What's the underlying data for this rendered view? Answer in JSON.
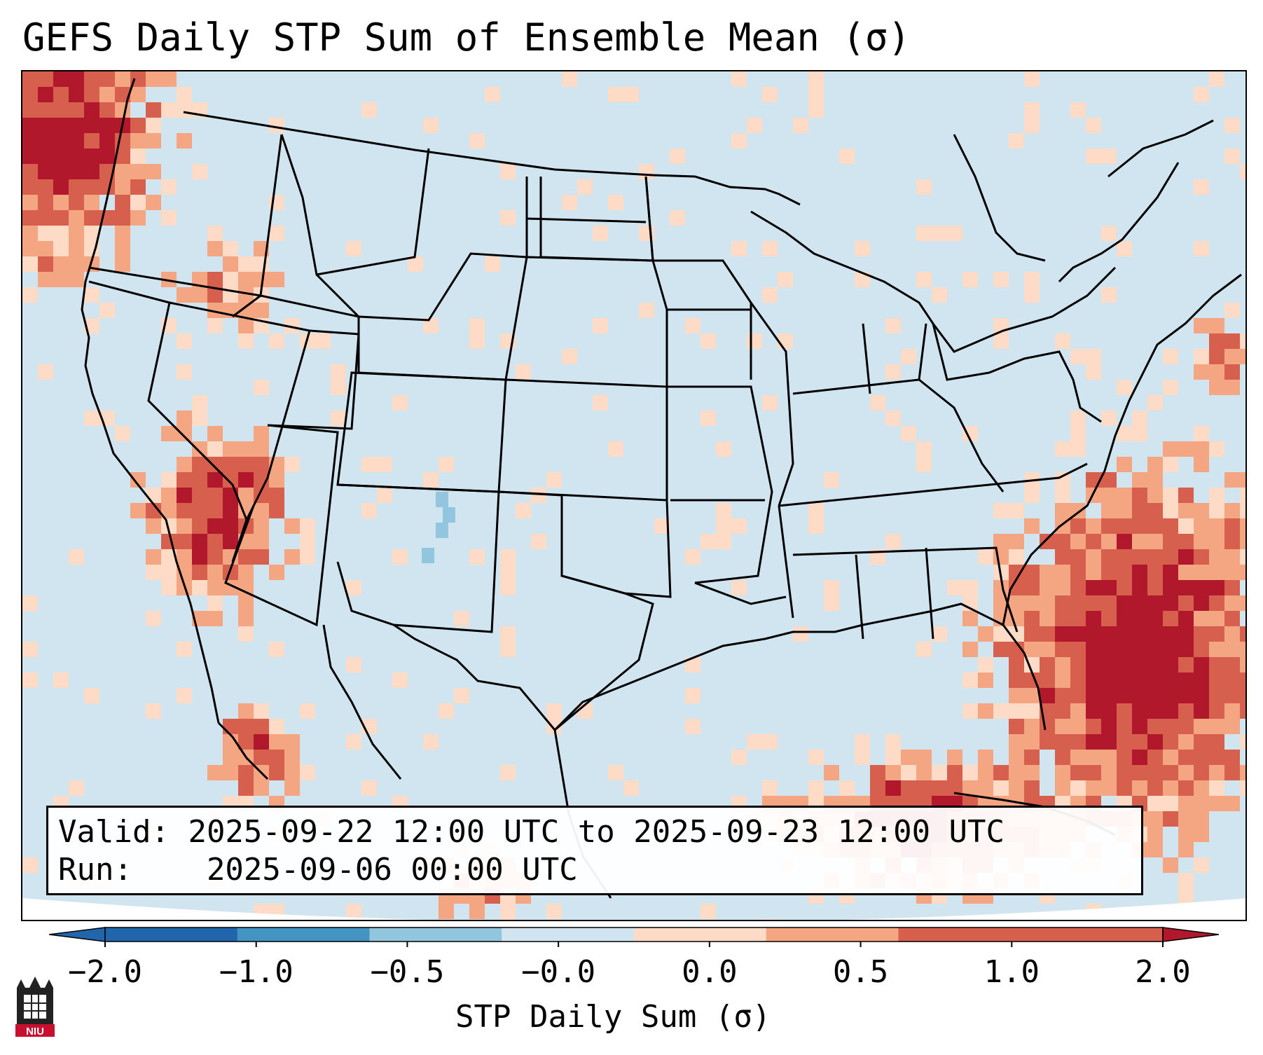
{
  "title": "GEFS Daily STP Sum of Ensemble Mean (σ)",
  "info": {
    "valid_label": "Valid:",
    "valid_value": "2025-09-22 12:00 UTC to 2025-09-23 12:00 UTC",
    "run_label": "Run:",
    "run_value": "2025-09-06 00:00 UTC"
  },
  "colorbar": {
    "label": "STP Daily Sum (σ)",
    "ticks": [
      "−2.0",
      "−1.0",
      "−0.5",
      "−0.0",
      "0.0",
      "0.5",
      "1.0",
      "2.0"
    ],
    "colors": [
      "#2166ac",
      "#4393c3",
      "#92c5de",
      "#d1e5f0",
      "#f7f7f7",
      "#fddbc7",
      "#f4a582",
      "#d6604d",
      "#b2182b"
    ]
  },
  "map": {
    "background_color": "#d1e5f0",
    "positive_high_color": "#b2182b",
    "positive_mid_color": "#d6604d",
    "positive_low_color": "#f4a582",
    "positive_min_color": "#fddbc7",
    "negative_color": "#92c5de"
  },
  "logo_text": "NIU",
  "icons": {
    "logo": "niu-castle-logo-icon"
  }
}
